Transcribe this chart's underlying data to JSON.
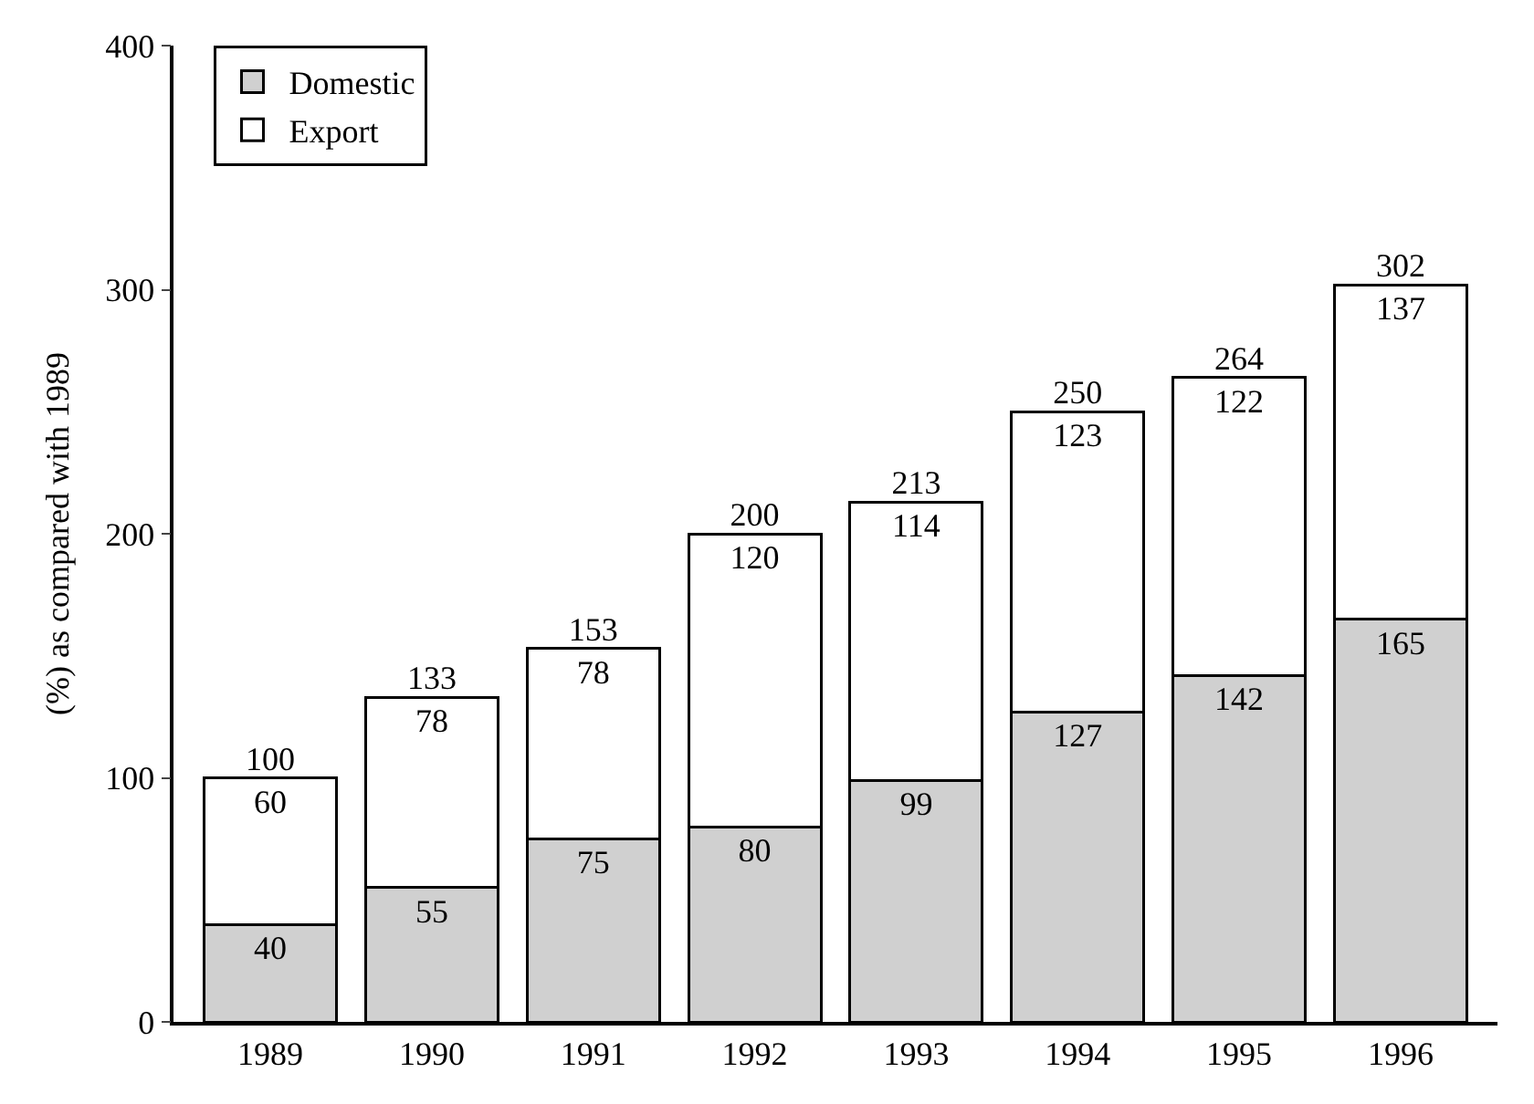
{
  "chart_data": {
    "type": "bar",
    "stacked": true,
    "ylabel": "(%) as compared with 1989",
    "categories": [
      "1989",
      "1990",
      "1991",
      "1992",
      "1993",
      "1994",
      "1995",
      "1996"
    ],
    "series": [
      {
        "name": "Domestic",
        "color": "#d0d0d0",
        "values": [
          40,
          55,
          75,
          80,
          99,
          127,
          142,
          165
        ]
      },
      {
        "name": "Export",
        "color": "#ffffff",
        "values": [
          60,
          78,
          78,
          120,
          114,
          123,
          122,
          137
        ]
      }
    ],
    "totals": [
      "100",
      "133",
      "153",
      "200",
      "213",
      "250",
      "264",
      "302"
    ],
    "data_labels": true,
    "ylim": [
      0,
      400
    ],
    "yticks": [
      0,
      100,
      200,
      300,
      400
    ],
    "legend": "top left"
  }
}
